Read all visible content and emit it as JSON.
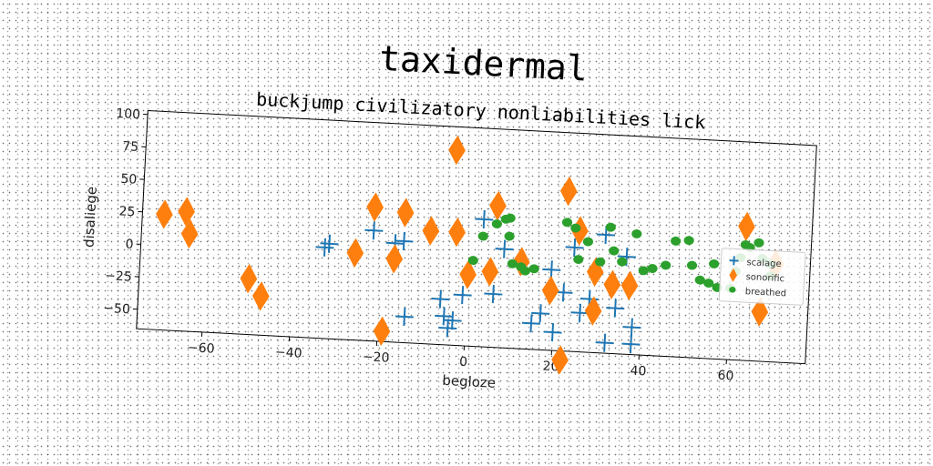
{
  "chart_data": {
    "type": "scatter",
    "title": "taxidermal",
    "subtitle": "buckjump civilizatory nonliabilities lick",
    "xlabel": "begloze",
    "ylabel": "disaliege",
    "xlim": [
      -75,
      78
    ],
    "ylim": [
      -65,
      103
    ],
    "xticks": [
      -60,
      -40,
      -20,
      0,
      20,
      40,
      60
    ],
    "yticks": [
      -50,
      -25,
      0,
      25,
      50,
      75,
      100
    ],
    "grid": false,
    "legend_position": "right",
    "series": [
      {
        "name": "scalage",
        "marker": "plus",
        "color": "#1f77b4",
        "points": [
          [
            -33,
            5
          ],
          [
            -32,
            8
          ],
          [
            -22,
            20
          ],
          [
            -17,
            11
          ],
          [
            -15,
            13
          ],
          [
            -14,
            -45
          ],
          [
            -6,
            -30
          ],
          [
            -5,
            -43
          ],
          [
            -4,
            -52
          ],
          [
            -3,
            -46
          ],
          [
            -1,
            -26
          ],
          [
            3,
            33
          ],
          [
            6,
            -24
          ],
          [
            8,
            11
          ],
          [
            15,
            -45
          ],
          [
            17,
            -37
          ],
          [
            19,
            -3
          ],
          [
            20,
            -51
          ],
          [
            22,
            -20
          ],
          [
            24,
            15
          ],
          [
            26,
            -35
          ],
          [
            28,
            -24
          ],
          [
            31,
            26
          ],
          [
            32,
            -57
          ],
          [
            34,
            -30
          ],
          [
            36,
            10
          ],
          [
            38,
            -44
          ],
          [
            38,
            -57
          ]
        ]
      },
      {
        "name": "sonorific",
        "marker": "diamond",
        "color": "#ff7f0e",
        "points": [
          [
            -70,
            24
          ],
          [
            -65,
            27
          ],
          [
            -64,
            10
          ],
          [
            -50,
            -22
          ],
          [
            -47,
            -35
          ],
          [
            -26,
            2
          ],
          [
            -22,
            38
          ],
          [
            -19,
            -57
          ],
          [
            -17,
            -1
          ],
          [
            -15,
            35
          ],
          [
            -9,
            22
          ],
          [
            -4,
            85
          ],
          [
            -3,
            22
          ],
          [
            0,
            -10
          ],
          [
            5,
            -7
          ],
          [
            6,
            44
          ],
          [
            12,
            2
          ],
          [
            19,
            -19
          ],
          [
            22,
            58
          ],
          [
            22,
            -72
          ],
          [
            25,
            28
          ],
          [
            29,
            -3
          ],
          [
            29,
            -33
          ],
          [
            33,
            -12
          ],
          [
            37,
            -12
          ],
          [
            63,
            38
          ],
          [
            67,
            -27
          ],
          [
            70,
            10
          ]
        ]
      },
      {
        "name": "breathed",
        "marker": "circle",
        "color": "#2ca02c",
        "points": [
          [
            1,
            1
          ],
          [
            3,
            20
          ],
          [
            6,
            30
          ],
          [
            8,
            34
          ],
          [
            9,
            35
          ],
          [
            9,
            21
          ],
          [
            10,
            0
          ],
          [
            12,
            -2
          ],
          [
            13,
            -5
          ],
          [
            15,
            -3
          ],
          [
            22,
            34
          ],
          [
            24,
            30
          ],
          [
            25,
            6
          ],
          [
            27,
            20
          ],
          [
            30,
            5
          ],
          [
            32,
            32
          ],
          [
            33,
            14
          ],
          [
            35,
            6
          ],
          [
            38,
            28
          ],
          [
            40,
            0
          ],
          [
            42,
            2
          ],
          [
            45,
            5
          ],
          [
            47,
            24
          ],
          [
            50,
            25
          ],
          [
            51,
            6
          ],
          [
            53,
            -5
          ],
          [
            55,
            -7
          ],
          [
            56,
            8
          ],
          [
            57,
            -10
          ],
          [
            60,
            -10
          ],
          [
            61,
            3
          ],
          [
            62,
            14
          ],
          [
            63,
            24
          ],
          [
            64,
            22
          ],
          [
            66,
            26
          ],
          [
            67,
            14
          ],
          [
            69,
            10
          ],
          [
            69,
            1
          ]
        ]
      }
    ]
  }
}
